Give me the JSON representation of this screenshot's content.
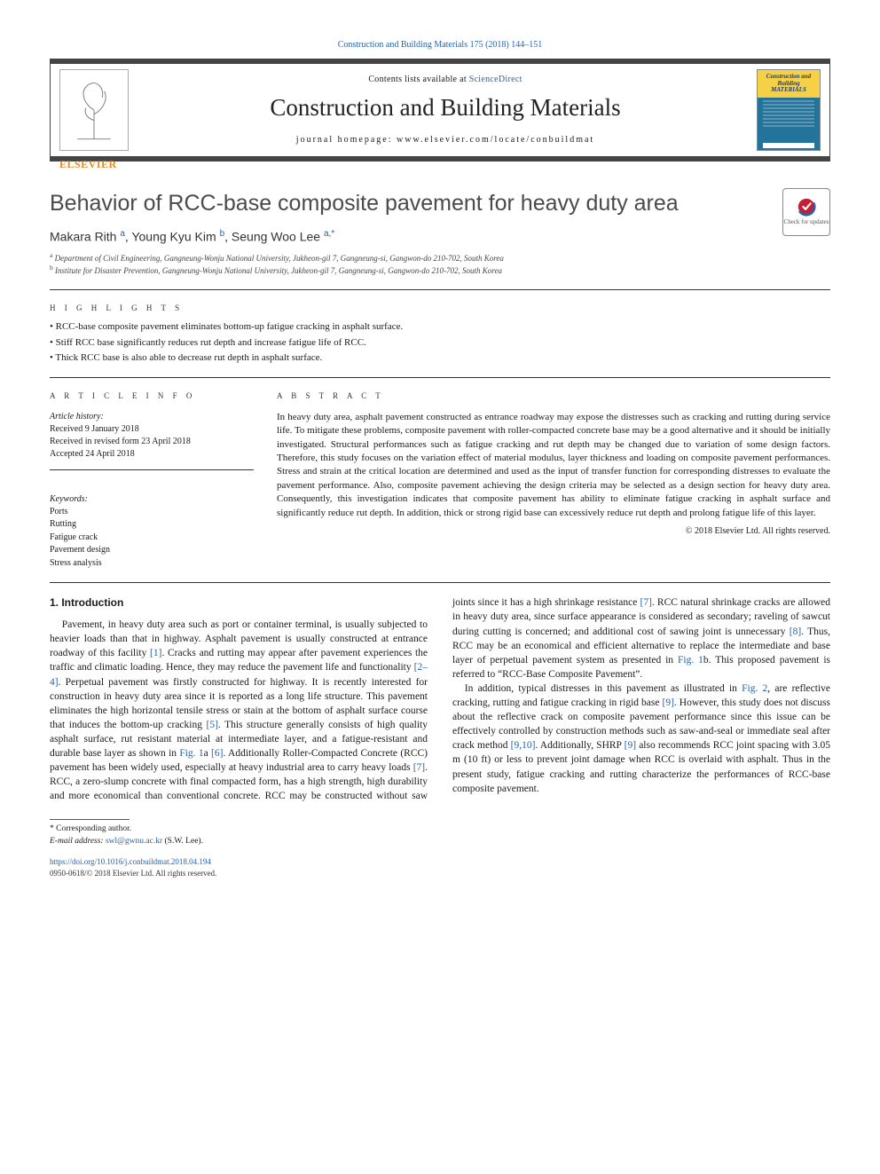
{
  "ref_line": "Construction and Building Materials 175 (2018) 144–151",
  "masthead": {
    "availability_prefix": "Contents lists available at ",
    "availability_link": "ScienceDirect",
    "journal_name": "Construction and Building Materials",
    "homepage_label": "journal homepage: www.elsevier.com/locate/conbuildmat",
    "publisher": "ELSEVIER",
    "cover_title": "Construction and Building MATERIALS"
  },
  "check_badge": "Check for updates",
  "title": "Behavior of RCC-base composite pavement for heavy duty area",
  "authors_html": "Makara Rith <sup class='ln'>a</sup>, Young Kyu Kim <sup class='ln'>b</sup>, Seung Woo Lee <sup class='ln'>a,*</sup>",
  "affiliations": {
    "a": "Department of Civil Engineering, Gangneung-Wonju National University, Jukheon-gil 7, Gangneung-si, Gangwon-do 210-702, South Korea",
    "b": "Institute for Disaster Prevention, Gangneung-Wonju National University, Jukheon-gil 7, Gangneung-si, Gangwon-do 210-702, South Korea"
  },
  "highlights_head": "h i g h l i g h t s",
  "highlights": [
    "RCC-base composite pavement eliminates bottom-up fatigue cracking in asphalt surface.",
    "Stiff RCC base significantly reduces rut depth and increase fatigue life of RCC.",
    "Thick RCC base is also able to decrease rut depth in asphalt surface."
  ],
  "article_info_head": "a r t i c l e   i n f o",
  "history": {
    "label": "Article history:",
    "received": "Received 9 January 2018",
    "revised": "Received in revised form 23 April 2018",
    "accepted": "Accepted 24 April 2018"
  },
  "info_rule_present": true,
  "keywords_label": "Keywords:",
  "keywords": [
    "Ports",
    "Rutting",
    "Fatigue crack",
    "Pavement design",
    "Stress analysis"
  ],
  "abstract_head": "a b s t r a c t",
  "abstract": "In heavy duty area, asphalt pavement constructed as entrance roadway may expose the distresses such as cracking and rutting during service life. To mitigate these problems, composite pavement with roller-compacted concrete base may be a good alternative and it should be initially investigated. Structural performances such as fatigue cracking and rut depth may be changed due to variation of some design factors. Therefore, this study focuses on the variation effect of material modulus, layer thickness and loading on composite pavement performances. Stress and strain at the critical location are determined and used as the input of transfer function for corresponding distresses to evaluate the pavement performance. Also, composite pavement achieving the design criteria may be selected as a design section for heavy duty area. Consequently, this investigation indicates that composite pavement has ability to eliminate fatigue cracking in asphalt surface and significantly reduce rut depth. In addition, thick or strong rigid base can excessively reduce rut depth and prolong fatigue life of this layer.",
  "copyright": "© 2018 Elsevier Ltd. All rights reserved.",
  "section1_head": "1. Introduction",
  "colors": {
    "link": "#2862a8",
    "accent_orange": "#e98a1f",
    "cover_yellow": "#f6d146",
    "cover_blue": "#23739b",
    "text": "#1a1a1a",
    "rule": "#333333"
  },
  "typography": {
    "title_fontsize_pt": 19,
    "journal_fontsize_pt": 20,
    "body_fontsize_pt": 9,
    "affil_fontsize_pt": 7,
    "letterspaced_head_pt": 7
  },
  "body_paragraphs": {
    "p1a": "Pavement, in heavy duty area such as port or container terminal, is usually subjected to heavier loads than that in highway. Asphalt pavement is usually constructed at entrance roadway of this facility ",
    "c1": "[1]",
    "p1b": ". Cracks and rutting may appear after pavement experiences the traffic and climatic loading. Hence, they may reduce the pavement life and functionality ",
    "c2": "[2–4]",
    "p1c": ". Perpetual pavement was firstly constructed for highway. It is recently interested for construction in heavy duty area since it is reported as a long life structure. This pavement eliminates the high horizontal tensile stress or stain at the bottom of asphalt surface course that induces the bottom-up cracking ",
    "c3": "[5]",
    "p1d": ". This structure generally consists of high quality asphalt surface, rut resistant material at intermediate layer, and a fatigue-resistant and durable base layer as shown in ",
    "fig1a": "Fig. 1",
    "p1e": "a ",
    "c4": "[6]",
    "p1f": ". Additionally Roller-Compacted Concrete (RCC) pavement has been widely used, especially at heavy industrial area to carry heavy loads ",
    "c5": "[7]",
    "p1g": ". RCC, a zero-slump concrete with final compacted form, has a high strength, high durability and more economical than conventional concrete. RCC may be constructed without saw joints since it has a high shrinkage resistance ",
    "c6": "[7]",
    "p1h": ". RCC natural shrinkage cracks are allowed in heavy duty area, since surface appearance is considered as secondary; raveling of sawcut during cutting is concerned; and additional cost of sawing joint is unnecessary ",
    "c7": "[8]",
    "p1i": ". Thus, RCC may be an economical and efficient alternative to replace the intermediate and base layer of perpetual pavement system as presented in ",
    "fig1b": "Fig. 1",
    "p1j": "b. This proposed pavement is referred to “RCC-Base Composite Pavement”.",
    "p2a": "In addition, typical distresses in this pavement as illustrated in ",
    "fig2": "Fig. 2",
    "p2b": ", are reflective cracking, rutting and fatigue cracking in rigid base ",
    "c8": "[9]",
    "p2c": ". However, this study does not discuss about the reflective crack on composite pavement performance since this issue can be effectively controlled by construction methods such as saw-and-seal or immediate seal after crack method ",
    "c9": "[9,10]",
    "p2d": ". Additionally, SHRP ",
    "c10": "[9]",
    "p2e": " also recommends RCC joint spacing with 3.05 m (10 ft) or less to prevent joint damage when RCC is overlaid with asphalt. Thus in the present study, fatigue cracking and rutting characterize the performances of RCC-base composite pavement."
  },
  "footnote": {
    "marker": "* Corresponding author.",
    "email_label": "E-mail address: ",
    "email": "swl@gwnu.ac.kr",
    "email_tail": " (S.W. Lee)."
  },
  "doi": "https://doi.org/10.1016/j.conbuildmat.2018.04.194",
  "issn_line": "0950-0618/© 2018 Elsevier Ltd. All rights reserved."
}
